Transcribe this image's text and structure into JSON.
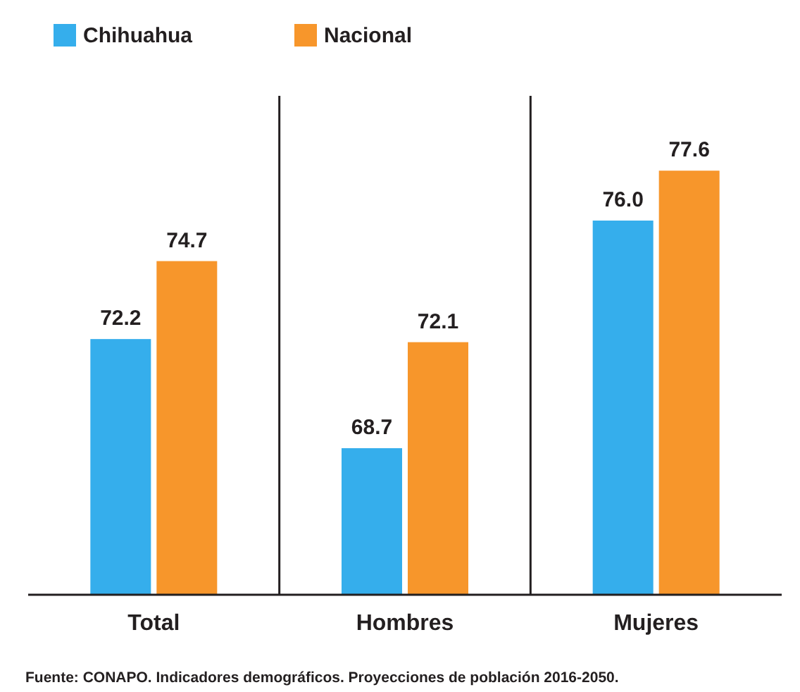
{
  "chart_data": {
    "type": "bar",
    "categories": [
      "Total",
      "Hombres",
      "Mujeres"
    ],
    "series": [
      {
        "name": "Chihuahua",
        "color": "#35aeec",
        "values": [
          72.2,
          68.7,
          76.0
        ],
        "value_labels": [
          "72.2",
          "68.7",
          "76.0"
        ]
      },
      {
        "name": "Nacional",
        "color": "#f7962b",
        "values": [
          74.7,
          72.1,
          77.6
        ],
        "value_labels": [
          "74.7",
          "72.1",
          "77.6"
        ]
      }
    ],
    "ylim": [
      64,
      80
    ],
    "tick_labels": "x",
    "legend": "top left",
    "annotations": [
      "Fuente: CONAPO. Indicadores demográficos. Proyecciones de población 2016-2050."
    ]
  }
}
